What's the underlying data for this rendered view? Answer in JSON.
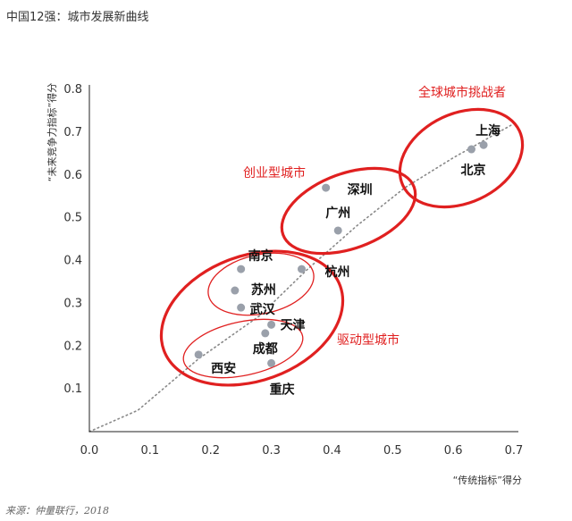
{
  "title": "中国12强：城市发展新曲线",
  "source": "来源：仲量联行，2018",
  "colors": {
    "highlight": "#e02020",
    "point": "#9aa0aa",
    "trend": "#888888",
    "axis": "#222222"
  },
  "chart_data": {
    "type": "scatter",
    "title": "中国12强：城市发展新曲线",
    "xlabel": "“传统指标”得分",
    "ylabel": "“未来竞争力指标”得分",
    "xlim": [
      0,
      0.7
    ],
    "ylim": [
      0,
      0.8
    ],
    "xticks": [
      "0.0",
      "0.1",
      "0.2",
      "0.3",
      "0.4",
      "0.5",
      "0.6",
      "0.7"
    ],
    "yticks": [
      "0.1",
      "0.2",
      "0.3",
      "0.4",
      "0.5",
      "0.6",
      "0.7",
      "0.8"
    ],
    "points": [
      {
        "label": "上海",
        "x": 0.65,
        "y": 0.67
      },
      {
        "label": "北京",
        "x": 0.63,
        "y": 0.66
      },
      {
        "label": "深圳",
        "x": 0.39,
        "y": 0.57
      },
      {
        "label": "广州",
        "x": 0.41,
        "y": 0.47
      },
      {
        "label": "杭州",
        "x": 0.35,
        "y": 0.38
      },
      {
        "label": "南京",
        "x": 0.25,
        "y": 0.38
      },
      {
        "label": "苏州",
        "x": 0.24,
        "y": 0.33
      },
      {
        "label": "武汉",
        "x": 0.25,
        "y": 0.29
      },
      {
        "label": "天津",
        "x": 0.3,
        "y": 0.25
      },
      {
        "label": "成都",
        "x": 0.29,
        "y": 0.23
      },
      {
        "label": "西安",
        "x": 0.18,
        "y": 0.18
      },
      {
        "label": "重庆",
        "x": 0.3,
        "y": 0.16
      }
    ],
    "groups": [
      {
        "label": "全球城市挑战者"
      },
      {
        "label": "创业型城市"
      },
      {
        "label": "驱动型城市"
      }
    ]
  }
}
